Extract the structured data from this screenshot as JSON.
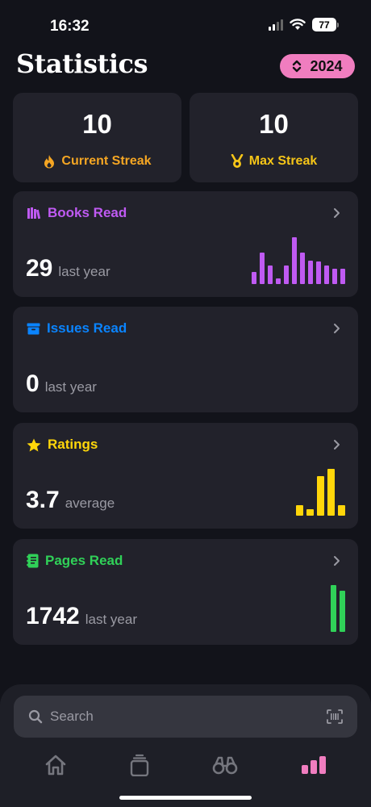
{
  "status_bar": {
    "time": "16:32",
    "battery": "77"
  },
  "header": {
    "title": "Statistics",
    "year": "2024"
  },
  "streaks": {
    "current": {
      "value": "10",
      "label": "Current Streak",
      "icon": "flame-icon",
      "color": "#f5a623"
    },
    "max": {
      "value": "10",
      "label": "Max Streak",
      "icon": "medal-icon",
      "color": "#f5c518"
    }
  },
  "cards": [
    {
      "title": "Books Read",
      "value": "29",
      "unit": "last year",
      "color": "#bf5af2",
      "icon": "books-icon",
      "bars": [
        0.26,
        0.67,
        0.4,
        0.12,
        0.4,
        1.0,
        0.67,
        0.5,
        0.48,
        0.4,
        0.33,
        0.33
      ]
    },
    {
      "title": "Issues Read",
      "value": "0",
      "unit": "last year",
      "color": "#0a84ff",
      "icon": "archive-icon",
      "bars": []
    },
    {
      "title": "Ratings",
      "value": "3.7",
      "unit": "average",
      "color": "#ffd60a",
      "icon": "star-icon",
      "bars": [
        0.22,
        0.14,
        0.84,
        1.0,
        0.22
      ]
    },
    {
      "title": "Pages Read",
      "value": "1742",
      "unit": "last year",
      "color": "#30d158",
      "icon": "notebook-icon",
      "bars": [
        1.0,
        0.88
      ]
    }
  ],
  "search": {
    "placeholder": "Search"
  },
  "tabs": [
    {
      "name": "home",
      "icon": "house-icon",
      "active": false
    },
    {
      "name": "library",
      "icon": "stack-icon",
      "active": false
    },
    {
      "name": "discover",
      "icon": "binoculars-icon",
      "active": false
    },
    {
      "name": "statistics",
      "icon": "bar-chart-icon",
      "active": true
    }
  ],
  "accent_color": "#f07dbf"
}
